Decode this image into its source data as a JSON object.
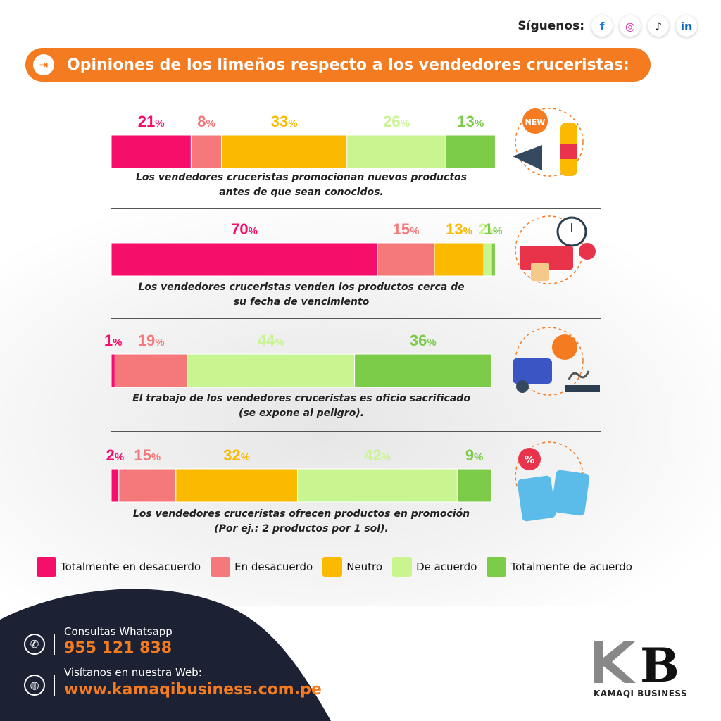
{
  "header": {
    "follow_label": "Síguenos:",
    "social": [
      {
        "name": "facebook",
        "glyph": "f",
        "color": "#1877f2"
      },
      {
        "name": "instagram",
        "glyph": "◎",
        "color": "#d6249f"
      },
      {
        "name": "tiktok",
        "glyph": "♪",
        "color": "#111111"
      },
      {
        "name": "linkedin",
        "glyph": "in",
        "color": "#0a66c2"
      }
    ]
  },
  "title": {
    "icon": "arrow-in-icon",
    "text": "Opiniones de los limeños respecto a los vendedores cruceristas:"
  },
  "colors": {
    "accent": "#f47b20",
    "categories": [
      "#f50f6b",
      "#f5797a",
      "#fbba00",
      "#c8f58f",
      "#7ccb49"
    ],
    "footer_bg": "#1c2234"
  },
  "chart_data": {
    "type": "bar",
    "orientation": "horizontal-stacked-100",
    "categories": [
      "Totalmente en desacuerdo",
      "En desacuerdo",
      "Neutro",
      "De acuerdo",
      "Totalmente de acuerdo"
    ],
    "rows": [
      {
        "caption": [
          "Los vendedores cruceristas promocionan nuevos productos",
          "antes de que sean conocidos."
        ],
        "values": [
          21,
          8,
          33,
          26,
          13
        ],
        "icon": "new-product-megaphone-icon"
      },
      {
        "caption": [
          "Los vendedores cruceristas venden los productos cerca de",
          "su fecha de vencimiento"
        ],
        "values": [
          70,
          15,
          13,
          2,
          1
        ],
        "icon": "expiring-snacks-clock-icon"
      },
      {
        "caption": [
          "El trabajo de los vendedores cruceristas es oficio sacrificado",
          "(se expone al peligro)."
        ],
        "values": [
          1,
          19,
          0,
          44,
          36
        ],
        "icon": "danger-car-accident-icon"
      },
      {
        "caption": [
          "Los vendedores cruceristas ofrecen productos en promoción",
          "(Por ej.: 2 productos por 1 sol)."
        ],
        "values": [
          2,
          15,
          32,
          42,
          9
        ],
        "icon": "chips-discount-icon"
      }
    ],
    "value_suffix": "%"
  },
  "footer": {
    "whatsapp_label": "Consultas Whatsapp",
    "whatsapp_number": "955 121 838",
    "web_label": "Visítanos en nuestra Web:",
    "web_url": "www.kamaqibusiness.com.pe",
    "brand_mark": "KB",
    "brand_name": "KAMAQI BUSINESS"
  }
}
